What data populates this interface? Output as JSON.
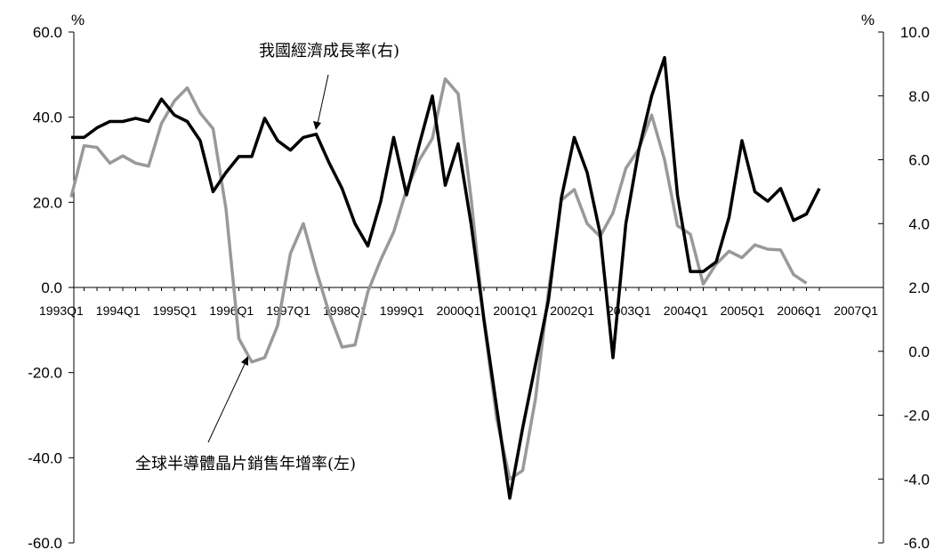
{
  "chart_data": {
    "type": "line",
    "left_axis": {
      "unit": "%",
      "ylim": [
        -60,
        60
      ],
      "ticks": [
        "60.0",
        "40.0",
        "20.0",
        "0.0",
        "-20.0",
        "-40.0",
        "-60.0"
      ],
      "tick_values": [
        60,
        40,
        20,
        0,
        -20,
        -40,
        -60
      ]
    },
    "right_axis": {
      "unit": "%",
      "ylim": [
        -6,
        10
      ],
      "ticks": [
        "10.0",
        "8.0",
        "6.0",
        "4.0",
        "2.0",
        "0.0",
        "-2.0",
        "-4.0",
        "-6.0"
      ],
      "tick_values": [
        10,
        8,
        6,
        4,
        2,
        0,
        -2,
        -4,
        -6
      ]
    },
    "x_tick_labels": [
      "1993Q1",
      "1994Q1",
      "1995Q1",
      "1996Q1",
      "1997Q1",
      "1998Q1",
      "1999Q1",
      "2000Q1",
      "2001Q1",
      "2002Q1",
      "2003Q1",
      "2004Q1",
      "2005Q1",
      "2006Q1",
      "2007Q1"
    ],
    "series": [
      {
        "name": "全球半導體晶片銷售年增率(左)",
        "axis": "left",
        "color": "#999999",
        "values": [
          21.2,
          33.3,
          32.9,
          29.2,
          30.9,
          29.2,
          28.5,
          38.5,
          43.8,
          46.9,
          41.0,
          37.3,
          18.5,
          -12.0,
          -17.5,
          -16.5,
          -9.0,
          8.0,
          15.0,
          4.0,
          -6.0,
          -14.0,
          -13.5,
          -1.0,
          6.5,
          13.0,
          23.0,
          30.0,
          35.0,
          49.0,
          45.5,
          21.0,
          -8.0,
          -31.0,
          -45.0,
          -43.0,
          -26.0,
          -1.0,
          20.5,
          23.0,
          15.0,
          12.0,
          17.5,
          28.0,
          32.5,
          40.5,
          30.0,
          14.5,
          12.5,
          0.8,
          5.5,
          8.5,
          7.0,
          10.0,
          9.0,
          8.8,
          3.0,
          1.0
        ]
      },
      {
        "name": "我國經濟成長率(右)",
        "axis": "right",
        "color": "#000000",
        "values": [
          6.7,
          6.7,
          7.0,
          7.2,
          7.2,
          7.3,
          7.2,
          7.9,
          7.4,
          7.2,
          6.6,
          5.0,
          5.6,
          6.1,
          6.1,
          7.3,
          6.6,
          6.3,
          6.7,
          6.8,
          5.9,
          5.1,
          4.0,
          3.3,
          4.7,
          6.7,
          4.9,
          6.5,
          8.0,
          5.2,
          6.5,
          4.0,
          1.0,
          -1.8,
          -4.6,
          -2.4,
          -0.4,
          1.6,
          4.8,
          6.7,
          5.6,
          3.7,
          -0.2,
          4.0,
          6.3,
          8.0,
          9.2,
          4.9,
          2.5,
          2.5,
          2.8,
          4.2,
          6.6,
          5.0,
          4.7,
          5.1,
          4.1,
          4.3,
          5.1
        ]
      }
    ],
    "annotations": {
      "right_series": "我國經濟成長率(右)",
      "left_series": "全球半導體晶片銷售年增率(左)"
    },
    "grid": false,
    "legend": "annotations"
  }
}
